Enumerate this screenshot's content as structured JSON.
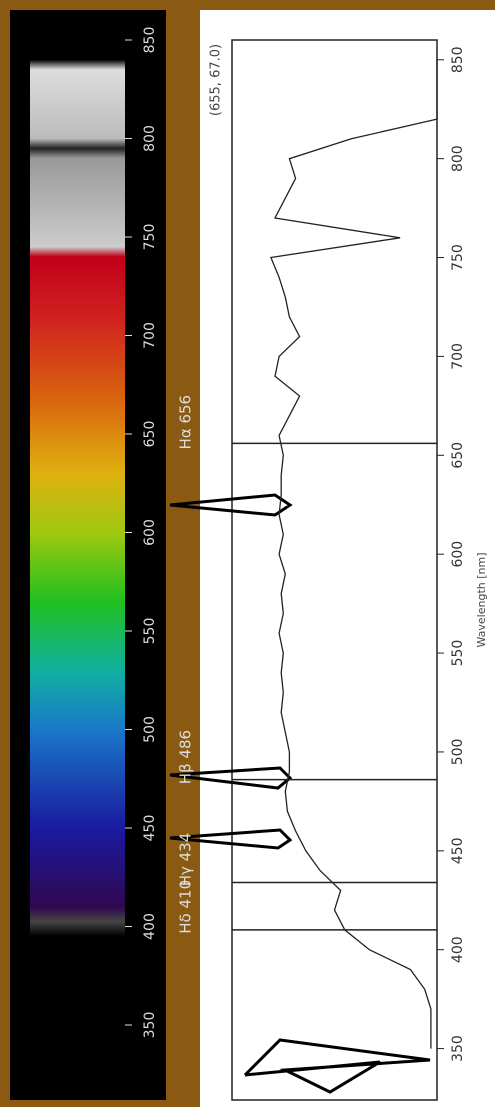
{
  "chart_data": {
    "type": "line",
    "x_label": "Wavelength [nm]",
    "x": [
      350,
      360,
      370,
      380,
      390,
      400,
      410,
      420,
      430,
      440,
      450,
      460,
      470,
      480,
      490,
      500,
      510,
      520,
      530,
      540,
      550,
      560,
      570,
      580,
      590,
      600,
      610,
      620,
      630,
      640,
      650,
      660,
      670,
      680,
      690,
      700,
      710,
      720,
      730,
      740,
      750,
      760,
      770,
      780,
      790,
      800,
      810,
      820,
      830,
      840,
      850
    ],
    "series": [
      {
        "color": "#222222",
        "values": [
          3,
          3,
          3,
          6,
          13,
          33,
          45,
          50,
          47,
          57,
          64,
          69,
          73,
          74,
          72,
          72,
          74,
          76,
          75,
          76,
          75,
          77,
          75,
          76,
          74,
          77,
          75,
          77,
          76,
          76,
          75,
          77,
          72,
          67,
          79,
          77,
          67,
          72,
          74,
          77,
          81,
          18,
          79,
          74,
          69,
          72,
          42,
          0,
          0,
          0,
          0
        ]
      }
    ],
    "xlim": [
      324,
      860
    ],
    "xticks": [
      350,
      400,
      450,
      500,
      550,
      600,
      650,
      700,
      750,
      800,
      850
    ],
    "vlim": [
      0,
      100
    ],
    "spectrum_ticks": [
      350,
      400,
      450,
      500,
      550,
      600,
      650,
      700,
      750,
      800,
      850
    ],
    "annotations": [
      {
        "text": "Hα 656",
        "x": 656
      },
      {
        "text": "Hβ 486",
        "x": 486
      },
      {
        "text": "Hγ 434",
        "x": 434
      },
      {
        "text": "Hδ 410",
        "x": 410
      }
    ],
    "point_label": "(655, 67.0)"
  }
}
